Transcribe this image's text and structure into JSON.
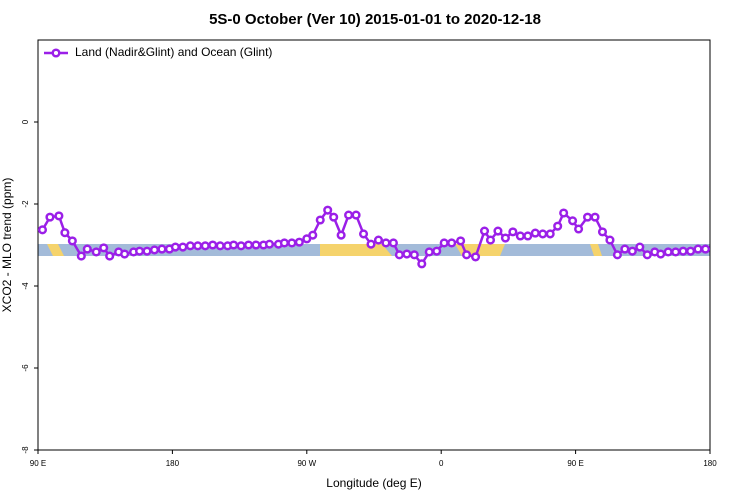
{
  "chart_data": {
    "type": "line",
    "title": "5S-0 October (Ver 10)   2015-01-01 to 2020-12-18",
    "x_label": "Longitude (deg E)",
    "y_label": "XCO2 - MLO trend (ppm)",
    "xlim": [
      90,
      540
    ],
    "ylim": [
      -8,
      2
    ],
    "xticks": [
      {
        "value": 90,
        "label": "90 E"
      },
      {
        "value": 180,
        "label": "180"
      },
      {
        "value": 270,
        "label": "90 W"
      },
      {
        "value": 360,
        "label": "0"
      },
      {
        "value": 450,
        "label": "90 E"
      },
      {
        "value": 540,
        "label": "180"
      }
    ],
    "yticks": [
      0,
      -2,
      -4,
      -6,
      -8
    ],
    "legend": "top-left",
    "series": [
      {
        "name": "Land (Nadir&Glint) and Ocean (Glint)",
        "color": "#9b1fe8",
        "x": [
          93,
          98,
          104,
          108,
          113,
          119,
          123,
          129,
          134,
          138,
          144,
          148,
          154,
          158,
          163,
          168,
          173,
          178,
          182,
          187,
          192,
          197,
          202,
          207,
          212,
          217,
          221,
          226,
          231,
          236,
          241,
          245,
          251,
          255,
          260,
          265,
          270,
          274,
          279,
          284,
          288,
          293,
          298,
          303,
          308,
          313,
          318,
          323,
          328,
          332,
          337,
          342,
          347,
          352,
          357,
          362,
          367,
          373,
          377,
          383,
          389,
          393,
          398,
          403,
          408,
          413,
          418,
          423,
          428,
          433,
          438,
          442,
          448,
          452,
          458,
          463,
          468,
          473,
          478,
          483,
          488,
          493,
          498,
          503,
          507,
          512,
          517,
          522,
          527,
          532,
          537
        ],
        "values": [
          -2.63,
          -2.32,
          -2.29,
          -2.7,
          -2.9,
          -3.27,
          -3.1,
          -3.17,
          -3.07,
          -3.27,
          -3.17,
          -3.22,
          -3.17,
          -3.15,
          -3.15,
          -3.12,
          -3.1,
          -3.1,
          -3.05,
          -3.05,
          -3.02,
          -3.02,
          -3.02,
          -3.0,
          -3.02,
          -3.02,
          -3.0,
          -3.02,
          -3.0,
          -3.0,
          -3.0,
          -2.98,
          -2.98,
          -2.95,
          -2.95,
          -2.93,
          -2.85,
          -2.76,
          -2.39,
          -2.15,
          -2.32,
          -2.76,
          -2.27,
          -2.27,
          -2.73,
          -2.98,
          -2.88,
          -2.95,
          -2.95,
          -3.24,
          -3.22,
          -3.24,
          -3.46,
          -3.17,
          -3.15,
          -2.95,
          -2.95,
          -2.9,
          -3.24,
          -3.29,
          -2.66,
          -2.88,
          -2.66,
          -2.83,
          -2.68,
          -2.78,
          -2.78,
          -2.71,
          -2.73,
          -2.73,
          -2.54,
          -2.22,
          -2.41,
          -2.61,
          -2.32,
          -2.32,
          -2.68,
          -2.88,
          -3.24,
          -3.1,
          -3.15,
          -3.05,
          -3.24,
          -3.17,
          -3.22,
          -3.17,
          -3.17,
          -3.15,
          -3.15,
          -3.1,
          -3.1
        ]
      }
    ]
  }
}
